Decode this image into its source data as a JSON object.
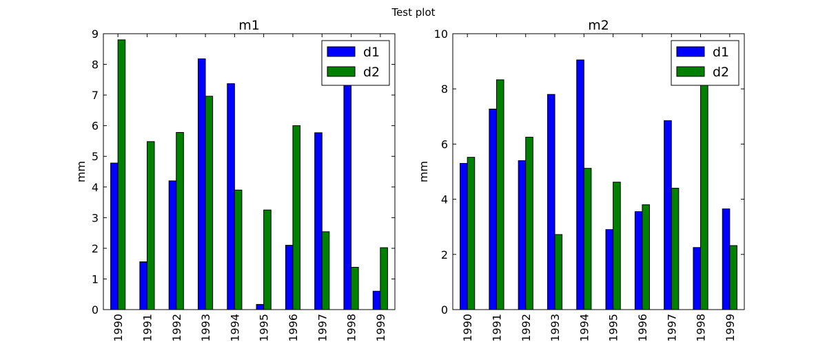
{
  "figure": {
    "suptitle": "Test plot"
  },
  "colors": {
    "d1": "#0000ff",
    "d2": "#008000",
    "axis": "#000000",
    "background": "#ffffff"
  },
  "chart_data": [
    {
      "type": "bar",
      "title": "m1",
      "xlabel": "",
      "ylabel": "mm",
      "categories": [
        "1990",
        "1991",
        "1992",
        "1993",
        "1994",
        "1995",
        "1996",
        "1997",
        "1998",
        "1999"
      ],
      "ylim": [
        0,
        9
      ],
      "yticks": [
        0,
        1,
        2,
        3,
        4,
        5,
        6,
        7,
        8,
        9
      ],
      "grid": false,
      "legend_position": "top-right",
      "series": [
        {
          "name": "d1",
          "color": "#0000ff",
          "values": [
            4.78,
            1.56,
            4.2,
            8.18,
            7.37,
            0.17,
            2.1,
            5.77,
            7.6,
            0.6
          ]
        },
        {
          "name": "d2",
          "color": "#008000",
          "values": [
            8.8,
            5.48,
            5.78,
            6.96,
            3.9,
            3.25,
            6.0,
            2.54,
            1.38,
            2.02
          ]
        }
      ]
    },
    {
      "type": "bar",
      "title": "m2",
      "xlabel": "",
      "ylabel": "mm",
      "categories": [
        "1990",
        "1991",
        "1992",
        "1993",
        "1994",
        "1995",
        "1996",
        "1997",
        "1998",
        "1999"
      ],
      "ylim": [
        0,
        10
      ],
      "yticks": [
        0,
        2,
        4,
        6,
        8,
        10
      ],
      "grid": false,
      "legend_position": "top-right",
      "series": [
        {
          "name": "d1",
          "color": "#0000ff",
          "values": [
            5.3,
            7.27,
            5.4,
            7.8,
            9.05,
            2.9,
            3.55,
            6.85,
            2.25,
            3.65
          ]
        },
        {
          "name": "d2",
          "color": "#008000",
          "values": [
            5.52,
            8.33,
            6.25,
            2.72,
            5.12,
            4.62,
            3.8,
            4.4,
            8.3,
            2.32
          ]
        }
      ]
    }
  ]
}
